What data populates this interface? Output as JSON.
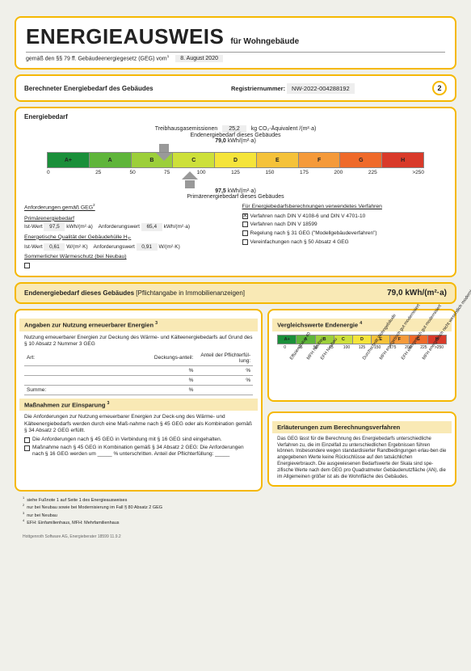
{
  "header": {
    "title": "ENERGIEAUSWEIS",
    "subtitle": "für Wohngebäude",
    "regulation": "gemäß den §§ 79 ff. Gebäudeenergiegesetz (GEG) vom",
    "regulation_sup": "1",
    "date": "8. August 2020"
  },
  "status": {
    "label": "Berechneter Energiebedarf des Gebäudes",
    "regnum_label": "Registriernummer:",
    "regnum": "NW-2022-004288192",
    "page": "2"
  },
  "bedarf": {
    "heading": "Energiebedarf",
    "ghg_label": "Treibhausgasemissionen",
    "ghg_value": "25,2",
    "ghg_unit": "kg CO₂-Äquivalent /(m²·a)",
    "top_arrow_label": "Endenergiebedarf dieses Gebäudes",
    "top_arrow_value": "79,0",
    "top_arrow_unit": "kWh/(m²·a)",
    "bot_arrow_value": "97,5",
    "bot_arrow_unit": "kWh/(m²·a)",
    "bot_arrow_label": "Primärenergiebedarf dieses Gebäudes",
    "classes": [
      "A+",
      "A",
      "B",
      "C",
      "D",
      "E",
      "F",
      "G",
      "H"
    ],
    "class_colors": [
      "#1a8f3a",
      "#5fb53a",
      "#9ccf3a",
      "#cde03a",
      "#f5e43a",
      "#f5c23a",
      "#f59a3a",
      "#ef6a2a",
      "#d93a2a"
    ],
    "ticks": [
      "0",
      "25",
      "50",
      "75",
      "100",
      "125",
      "150",
      "175",
      "200",
      "225",
      ">250"
    ],
    "arrow_top_pct": 31,
    "arrow_bot_pct": 38
  },
  "req": {
    "heading": "Anforderungen gemäß GEG",
    "heading_sup": "2",
    "prim_label": "Primärenergiebedarf",
    "ist_label": "Ist-Wert",
    "ist_prim": "97,5",
    "prim_unit": "kWh/(m²·a)",
    "anf_label": "Anforderungswert",
    "anf_prim": "65,4",
    "qual_label": "Energetische Qualität der Gebäudehülle H",
    "qual_sup": "T'",
    "ist_ht": "0,61",
    "ht_unit": "W/(m²·K)",
    "anf_ht": "0,91",
    "sommer_label": "Sommerlicher Wärmeschutz (bei Neubau)",
    "verfahren_heading": "Für Energiebedarfsberechnungen verwendetes Verfahren",
    "opt1_checked": true,
    "opt1": "Verfahren nach DIN V 4108-6 und DIN V 4701-10",
    "opt2_checked": false,
    "opt2": "Verfahren nach DIN V 18599",
    "opt3_checked": false,
    "opt3": "Regelung nach § 31 GEG (\"Modellgebäudeverfahren\")",
    "opt4_checked": false,
    "opt4": "Vereinfachungen nach § 50 Absatz 4 GEG"
  },
  "endband": {
    "label": "Endenergiebedarf dieses Gebäudes",
    "sub": "[Pflichtangabe in Immobilienanzeigen]",
    "value": "79,0 kWh/(m²·a)"
  },
  "nutzung": {
    "heading": "Angaben zur Nutzung erneuerbarer Energien",
    "heading_sup": "3",
    "intro": "Nutzung erneuerbarer Energien zur Deckung des Wärme- und Kälteenergiebedarfs auf Grund des § 10 Absatz 2 Nummer 3 GEG",
    "col_art": "Art:",
    "col_deck": "Deckungs-anteil:",
    "col_pflicht": "Anteil der Pflichterfül-lung:",
    "pct": "%",
    "sum": "Summe:"
  },
  "massnahmen": {
    "heading": "Maßnahmen zur Einsparung",
    "heading_sup": "3",
    "intro": "Die Anforderungen zur Nutzung erneuerbarer Energien zur Deck-ung des Wärme- und Kälteenergiebedarfs werden durch eine Maß-nahme nach § 45 GEG oder als Kombination gemäß § 34 Absatz 2 GEG erfüllt.",
    "opt1_checked": false,
    "opt1": "Die Anforderungen nach § 45 GEG in Verbindung mit § 16 GEG sind eingehalten.",
    "opt2_checked": false,
    "opt2": "Maßnahme nach § 45 GEG in Kombination gemäß § 34 Absatz 2 GEG: Die Anforderungen nach § 16 GEG werden um _____ % unterschritten. Anteil der Pflichterfüllung: _____"
  },
  "vergleich": {
    "heading": "Vergleichswerte Endenergie",
    "heading_sup": "4",
    "classes": [
      "A+",
      "A",
      "B",
      "C",
      "D",
      "E",
      "F",
      "G",
      "H"
    ],
    "class_colors": [
      "#1a8f3a",
      "#5fb53a",
      "#9ccf3a",
      "#cde03a",
      "#f5e43a",
      "#f5c23a",
      "#f59a3a",
      "#ef6a2a",
      "#d93a2a"
    ],
    "ticks": [
      "0",
      "25",
      "50",
      "75",
      "100",
      "125",
      "150",
      "175",
      "200",
      "225",
      ">250"
    ],
    "labels": [
      {
        "text": "Effizienzhaus 40",
        "pct": 7
      },
      {
        "text": "MFH Neubau",
        "pct": 17
      },
      {
        "text": "EFH Neubau",
        "pct": 25
      },
      {
        "text": "Durchschnitt Wohngebäude",
        "pct": 50
      },
      {
        "text": "MFH energetisch gut modernisiert",
        "pct": 60
      },
      {
        "text": "EFH energetisch gut modernisiert",
        "pct": 73
      },
      {
        "text": "MFH energetisch nicht wesentlich modernisiert",
        "pct": 85
      }
    ]
  },
  "erl": {
    "heading": "Erläuterungen zum Berechnungsverfahren",
    "body": "Das GEG lässt für die Berechnung des Energiebedarfs unterschiedliche Verfahren zu, die im Einzelfall zu unterschiedlichen Ergebnissen führen können. Insbesondere wegen standardisierter Randbedingungen erlau-ben die angegebenen Werte keine Rückschlüsse auf den tatsächlichen Energieverbrauch. Die ausgewiesenen Bedarfswerte der Skala sind spe-zifische Werte nach dem GEG pro Quadratmeter Gebäudenutzfläche (AN), die im Allgemeinen größer ist als die Wohnfläche des Gebäudes."
  },
  "footnotes": {
    "f1": "siehe Fußnote 1 auf Seite 1 des Energieausweises",
    "f2": "nur bei Neubau sowie bei Modernisierung im Fall § 80 Absatz 2 GEG",
    "f3": "nur bei Neubau",
    "f4": "EFH: Einfamilienhaus, MFH: Mehrfamilienhaus"
  },
  "footer": "Hottgenroth Software AG, Energieberater 18599 11.9.2"
}
